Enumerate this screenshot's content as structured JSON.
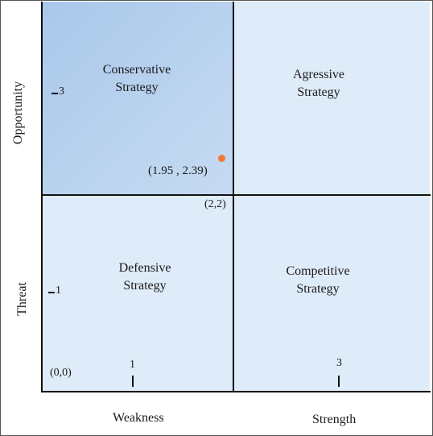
{
  "quadrants": {
    "top_left": [
      "Conservative",
      "Strategy"
    ],
    "top_right": [
      "Agressive",
      "Strategy"
    ],
    "bottom_left": [
      "Defensive",
      "Strategy"
    ],
    "bottom_right": [
      "Competitive",
      "Strategy"
    ]
  },
  "axes": {
    "y_upper": "Opportunity",
    "y_lower": "Threat",
    "x_left": "Weakness",
    "x_right": "Strength"
  },
  "ticks": {
    "y_top": "3",
    "y_bottom": "1",
    "x_left": "1",
    "x_right": "3"
  },
  "annotations": {
    "origin": "(0,0)",
    "center": "(2,2)",
    "point": "(1.95 , 2.39)"
  },
  "colors": {
    "highlight_quadrant": "#b7d1ee",
    "other_quadrants": "#deebf8",
    "point": "#f07a35"
  }
}
